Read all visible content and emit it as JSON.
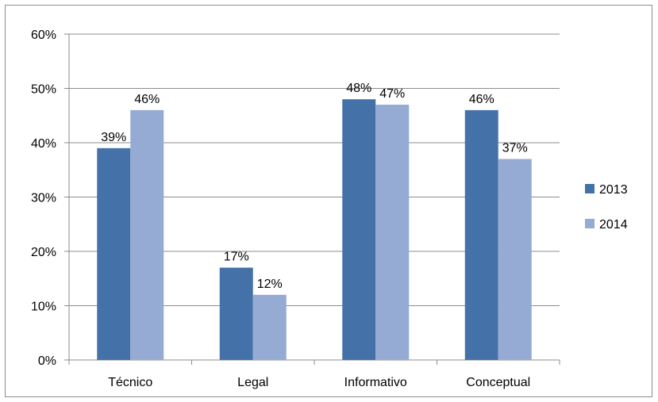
{
  "chart_data": {
    "type": "bar",
    "categories": [
      "Técnico",
      "Legal",
      "Informativo",
      "Conceptual"
    ],
    "series": [
      {
        "name": "2013",
        "values": [
          39,
          17,
          48,
          46
        ],
        "labels": [
          "39%",
          "17%",
          "48%",
          "46%"
        ],
        "color": "#4472a8"
      },
      {
        "name": "2014",
        "values": [
          46,
          12,
          47,
          37
        ],
        "labels": [
          "46%",
          "12%",
          "47%",
          "37%"
        ],
        "color": "#95abd3"
      }
    ],
    "ylim": [
      0,
      60
    ],
    "yticks": [
      0,
      10,
      20,
      30,
      40,
      50,
      60
    ],
    "ytick_labels": [
      "0%",
      "10%",
      "20%",
      "30%",
      "40%",
      "50%",
      "60%"
    ],
    "grid": true,
    "legend": "right",
    "title": "",
    "xlabel": "",
    "ylabel": ""
  }
}
